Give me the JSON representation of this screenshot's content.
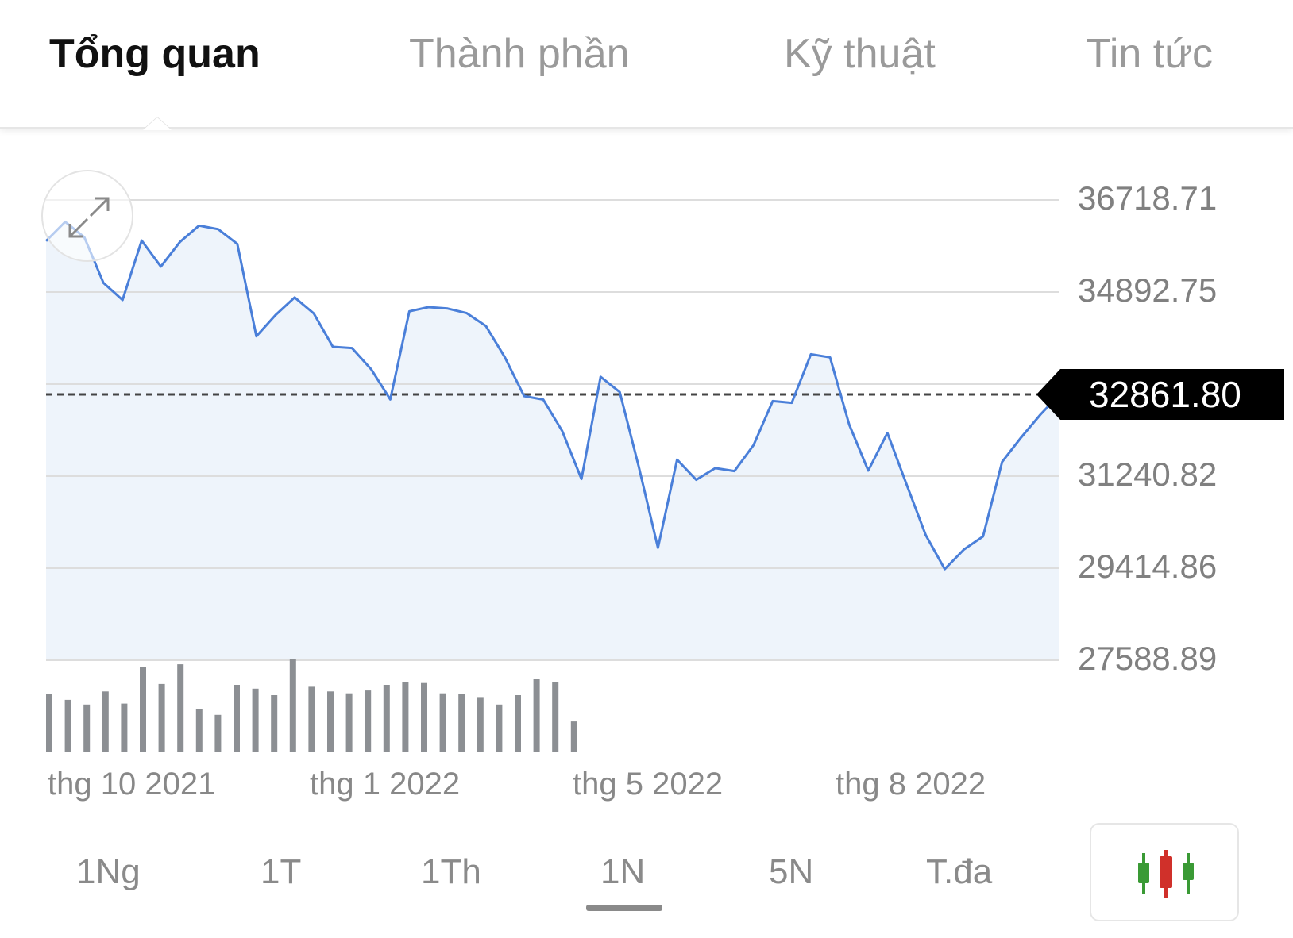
{
  "tabs": [
    {
      "label": "Tổng quan",
      "active": true
    },
    {
      "label": "Thành phần",
      "active": false
    },
    {
      "label": "Kỹ thuật",
      "active": false
    },
    {
      "label": "Tin tức",
      "active": false
    }
  ],
  "icons": {
    "expand": "expand-arrows-icon",
    "chart_type": "candlestick-icon"
  },
  "colors": {
    "line": "#4a7fd9",
    "area": "#eef4fb",
    "volume": "#8c8f93",
    "candle_green": "#3a9a35",
    "candle_red": "#d0302a"
  },
  "current_value": "32861.80",
  "range_buttons": [
    {
      "label": "1Ng",
      "active": false
    },
    {
      "label": "1T",
      "active": false
    },
    {
      "label": "1Th",
      "active": false
    },
    {
      "label": "1N",
      "active": true
    },
    {
      "label": "5N",
      "active": false
    },
    {
      "label": "T.đa",
      "active": false
    }
  ],
  "chart_data": {
    "type": "line",
    "y_ticks": [
      "36718.71",
      "34892.75",
      "31240.82",
      "29414.86",
      "27588.89"
    ],
    "ylim": [
      27588.89,
      36718.71
    ],
    "x_ticks": [
      "thg 10 2021",
      "thg 1 2022",
      "thg 5 2022",
      "thg 8 2022"
    ],
    "reference_line": 32861.8,
    "series": [
      {
        "values": [
          35905,
          36286,
          35980,
          35076,
          34736,
          35914,
          35398,
          35886,
          36210,
          36139,
          35848,
          34016,
          34437,
          34786,
          34467,
          33807,
          33781,
          33362,
          32763,
          34510,
          34594,
          34566,
          34474,
          34221,
          33594,
          32829,
          32760,
          32131,
          31184,
          33211,
          32910,
          31426,
          29820,
          31568,
          31168,
          31400,
          31341,
          31856,
          32730,
          32696,
          33658,
          33597,
          32264,
          31351,
          32097,
          31078,
          30075,
          29396,
          29785,
          30045,
          31525,
          32010,
          32460,
          32861.8
        ]
      }
    ],
    "volume": [
      0.62,
      0.56,
      0.51,
      0.65,
      0.52,
      0.91,
      0.73,
      0.94,
      0.46,
      0.4,
      0.72,
      0.68,
      0.61,
      1.0,
      0.7,
      0.65,
      0.63,
      0.66,
      0.72,
      0.75,
      0.74,
      0.63,
      0.62,
      0.59,
      0.51,
      0.61,
      0.78,
      0.75,
      0.33
    ]
  }
}
